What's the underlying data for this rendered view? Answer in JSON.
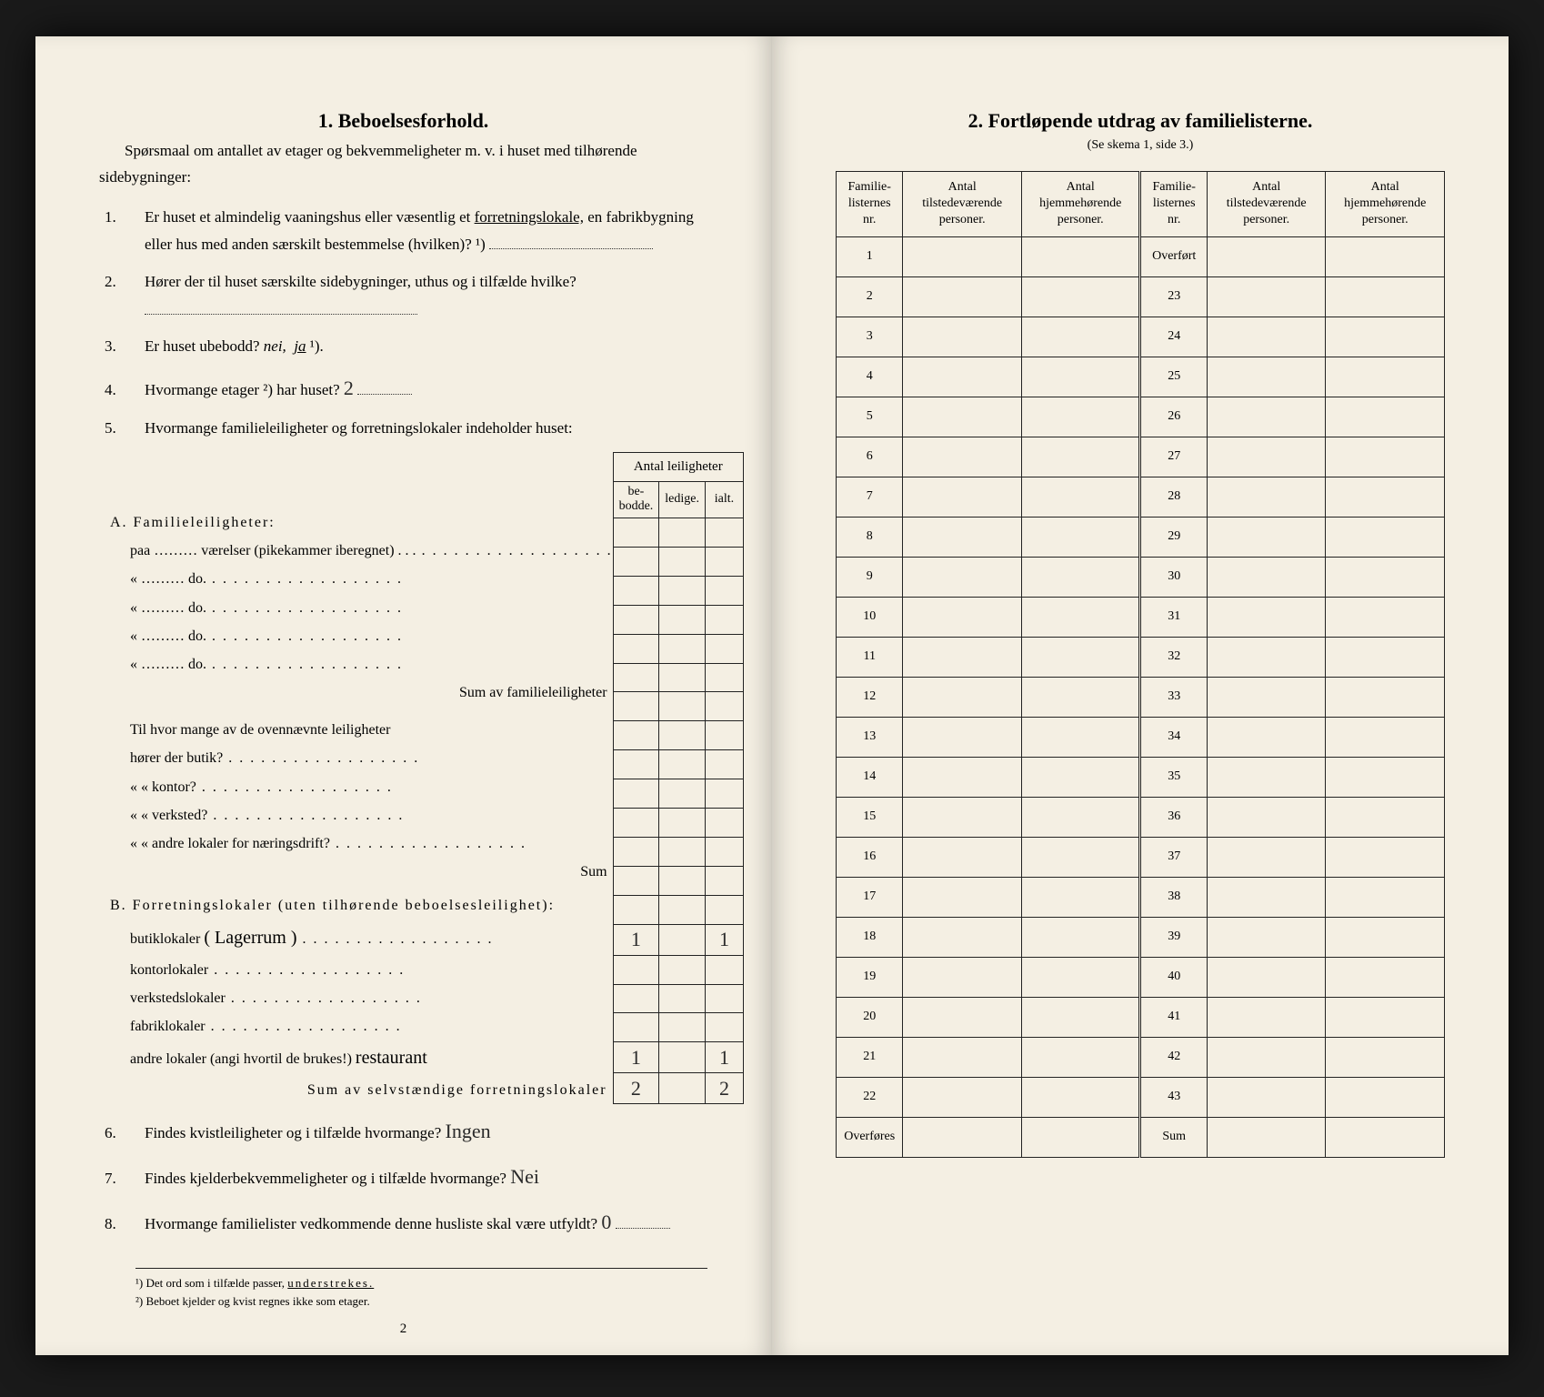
{
  "colors": {
    "paper": "#f4efe3",
    "ink": "#222222",
    "background": "#1a1a1a"
  },
  "left": {
    "title": "1.   Beboelsesforhold.",
    "intro": "Spørsmaal om antallet av etager og bekvemmeligheter m. v. i huset med tilhørende sidebygninger:",
    "q1": "Er huset et almindelig vaaningshus eller væsentlig et ",
    "q1_underlined": "forretningslokale,",
    "q1_rest": " en fabrikbygning eller hus med anden særskilt bestemmelse (hvilken)? ¹)",
    "q2": "Hører der til huset særskilte sidebygninger, uthus og i tilfælde hvilke?",
    "q3_a": "Er huset ubebodd?  ",
    "q3_nei": "nei,",
    "q3_ja": "ja",
    "q3_sup": " ¹).",
    "q4_a": "Hvormange etager ²) har huset?",
    "q4_val": "2",
    "q5": "Hvormange familieleiligheter og forretningslokaler indeholder huset:",
    "innerHeader": "Antal leiligheter",
    "h_be": "be-\nbodde.",
    "h_ledige": "ledige.",
    "h_ialt": "ialt.",
    "secA_title": "A. Familieleiligheter:",
    "secA_r1": "paa ………  værelser (pikekammer iberegnet)  .  .  .",
    "secA_do": "«  ………      do.",
    "secA_sum": "Sum av familieleiligheter",
    "midQ": "Til hvor mange av de ovennævnte leiligheter",
    "midQ1": "hører der butik?",
    "midQ2": "«     «   kontor?",
    "midQ3": "«     «   verksted?",
    "midQ4": "«     «   andre lokaler for næringsdrift?",
    "midSum": "Sum",
    "secB_title": "B. Forretningslokaler (uten tilhørende beboelsesleilighet):",
    "secB_butik": "butiklokaler",
    "secB_butik_hw": "( Lagerrum )",
    "secB_kontor": "kontorlokaler",
    "secB_verksted": "verkstedslokaler",
    "secB_fabrik": "fabriklokaler",
    "secB_andre": "andre lokaler (angi hvortil de brukes!)",
    "secB_andre_hw": "restaurant",
    "secB_sum": "Sum av selvstændige forretningslokaler",
    "b_butik_be": "1",
    "b_butik_ialt": "1",
    "b_andre_be": "1",
    "b_andre_ialt": "1",
    "b_sum_be": "2",
    "b_sum_ialt": "2",
    "q6": "Findes kvistleiligheter og i tilfælde hvormange?",
    "q6_hw": "Ingen",
    "q7": "Findes kjelderbekvemmeligheter og i tilfælde hvormange?",
    "q7_hw": "Nei",
    "q8": "Hvormange familielister vedkommende denne husliste skal være utfyldt?",
    "q8_hw": "0",
    "fn1": "¹) Det ord som i tilfælde passer, ",
    "fn1_u": "understrekes.",
    "fn2": "²) Beboet kjelder og kvist regnes ikke som etager.",
    "pagenum": "2"
  },
  "right": {
    "title": "2.   Fortløpende utdrag av familielisterne.",
    "subtitle": "(Se skema 1, side 3.)",
    "h1": "Familie-\nlisternes\nnr.",
    "h2": "Antal\ntilstedeværende\npersoner.",
    "h3": "Antal\nhjemmehørende\npersoner.",
    "h4": "Familie-\nlisternes\nnr.",
    "h5": "Antal\ntilstedeværende\npersoner.",
    "h6": "Antal\nhjemmehørende\npersoner.",
    "rows_left": [
      "1",
      "2",
      "3",
      "4",
      "5",
      "6",
      "7",
      "8",
      "9",
      "10",
      "11",
      "12",
      "13",
      "14",
      "15",
      "16",
      "17",
      "18",
      "19",
      "20",
      "21",
      "22"
    ],
    "rows_right_first": "Overført",
    "rows_right": [
      "23",
      "24",
      "25",
      "26",
      "27",
      "28",
      "29",
      "30",
      "31",
      "32",
      "33",
      "34",
      "35",
      "36",
      "37",
      "38",
      "39",
      "40",
      "41",
      "42",
      "43"
    ],
    "overfores": "Overføres",
    "sum": "Sum"
  }
}
